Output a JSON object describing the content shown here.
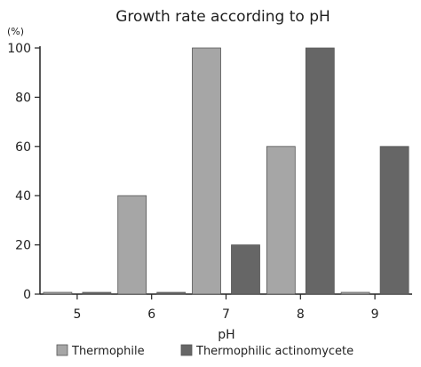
{
  "chart_data": {
    "type": "bar",
    "title": "Growth rate according to pH",
    "ylabel": "(%)",
    "xlabel": "pH",
    "categories": [
      "5",
      "6",
      "7",
      "8",
      "9"
    ],
    "ylim": [
      0,
      100
    ],
    "yticks": [
      "0",
      "20",
      "40",
      "60",
      "80",
      "100"
    ],
    "grid": false,
    "legend_position": "bottom",
    "series": [
      {
        "name": "Thermophile",
        "color": "#a6a6a6",
        "values": [
          0,
          40,
          100,
          60,
          0
        ]
      },
      {
        "name": "Thermophilic actinomycete",
        "color": "#666666",
        "values": [
          0,
          0,
          20,
          100,
          60
        ]
      }
    ]
  }
}
